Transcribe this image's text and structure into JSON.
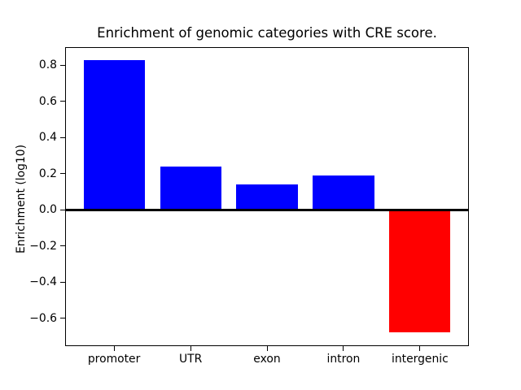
{
  "chart_data": {
    "type": "bar",
    "title": "Enrichment of genomic categories with CRE score.",
    "xlabel": "",
    "ylabel": "Enrichment (log10)",
    "categories": [
      "promoter",
      "UTR",
      "exon",
      "intron",
      "intergenic"
    ],
    "values": [
      0.83,
      0.24,
      0.14,
      0.19,
      -0.68
    ],
    "bar_colors": [
      "#0000ff",
      "#0000ff",
      "#0000ff",
      "#0000ff",
      "#ff0000"
    ],
    "positive_color": "#0000ff",
    "negative_color": "#ff0000",
    "yticks": [
      0.8,
      0.6,
      0.4,
      0.2,
      0.0,
      -0.2,
      -0.4,
      -0.6
    ],
    "ylim": [
      -0.755,
      0.9
    ],
    "xlim": [
      -0.64,
      4.64
    ],
    "bar_width": 0.8,
    "grid": false,
    "legend": null,
    "zero_line": true,
    "zero_line_color": "#000000",
    "background_color": "#ffffff",
    "text_color": "#000000"
  }
}
